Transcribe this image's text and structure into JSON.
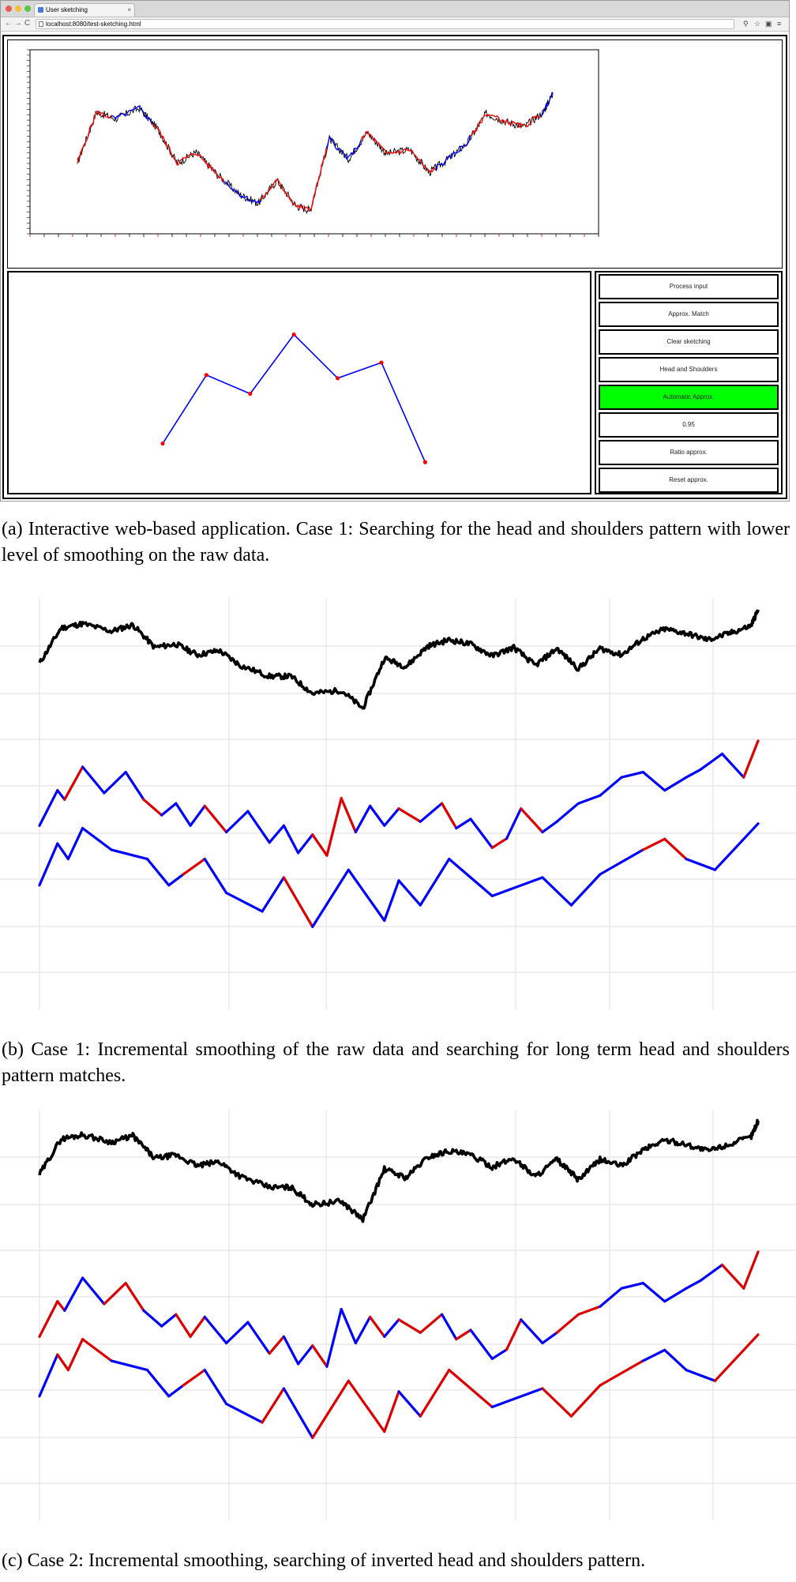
{
  "browser": {
    "tab_title": "User sketching",
    "tab_close": "×",
    "url": "localhost:8080/test-sketching.html",
    "nav": {
      "back": "←",
      "forward": "→",
      "reload": "C"
    },
    "toolbar_icons": {
      "zoom": "⚲",
      "star": "☆",
      "ext": "▣",
      "menu": "≡"
    }
  },
  "app": {
    "buttons": [
      {
        "label": "Process input",
        "active": false
      },
      {
        "label": "Approx. Match",
        "active": false
      },
      {
        "label": "Clear sketching",
        "active": false
      },
      {
        "label": "Head and Shoulders",
        "active": false
      },
      {
        "label": "Automatic Approx.",
        "active": true
      },
      {
        "label": "0.95",
        "active": false
      },
      {
        "label": "Ratio approx.",
        "active": false
      },
      {
        "label": "Reset approx.",
        "active": false
      }
    ],
    "active_color": "#00ff00",
    "sketch": {
      "line_color": "#0000ff",
      "point_color": "#ff0000",
      "points": [
        [
          0,
          0.18
        ],
        [
          1,
          0.62
        ],
        [
          2,
          0.5
        ],
        [
          3,
          0.88
        ],
        [
          4,
          0.6
        ],
        [
          5,
          0.7
        ],
        [
          6,
          0.06
        ]
      ]
    },
    "series_colors": {
      "price": "#000000",
      "segment_red": "#ff0000",
      "segment_blue": "#0000ff"
    }
  },
  "captions": {
    "a": "(a) Interactive web-based application. Case 1: Searching for the head and shoulders pattern with lower level of smoothing on the raw data.",
    "b": "(b) Case 1: Incremental smoothing of the raw data and searching for long term head and shoulders pattern matches.",
    "c": "(c) Case 2: Incremental smoothing, searching of inverted head and shoulders pattern."
  },
  "chart_data": [
    {
      "type": "line",
      "panel": "a",
      "series_colors": [
        "#000000",
        "#ff0000",
        "#0000ff"
      ],
      "x": [
        0,
        0.04,
        0.08,
        0.13,
        0.17,
        0.21,
        0.25,
        0.29,
        0.34,
        0.38,
        0.42,
        0.46,
        0.49,
        0.53,
        0.57,
        0.61,
        0.65,
        0.7,
        0.74,
        0.78,
        0.82,
        0.86,
        0.9,
        0.94,
        0.98,
        1.0
      ],
      "y": [
        0.45,
        0.83,
        0.78,
        0.86,
        0.7,
        0.45,
        0.53,
        0.38,
        0.22,
        0.15,
        0.32,
        0.13,
        0.1,
        0.63,
        0.48,
        0.68,
        0.52,
        0.55,
        0.38,
        0.48,
        0.6,
        0.82,
        0.76,
        0.72,
        0.83,
        0.97
      ]
    },
    {
      "type": "line",
      "panel": "b",
      "gridlines": true,
      "series": [
        {
          "color": "#000000",
          "x": [
            0,
            0.03,
            0.06,
            0.1,
            0.13,
            0.16,
            0.19,
            0.22,
            0.25,
            0.28,
            0.32,
            0.35,
            0.38,
            0.42,
            0.45,
            0.48,
            0.51,
            0.54,
            0.57,
            0.6,
            0.63,
            0.66,
            0.69,
            0.72,
            0.75,
            0.78,
            0.81,
            0.84,
            0.87,
            0.9,
            0.93,
            0.96,
            0.99,
            1.0
          ],
          "y": [
            0.5,
            0.83,
            0.87,
            0.8,
            0.86,
            0.65,
            0.68,
            0.58,
            0.62,
            0.48,
            0.38,
            0.38,
            0.22,
            0.25,
            0.08,
            0.55,
            0.47,
            0.66,
            0.72,
            0.68,
            0.57,
            0.65,
            0.48,
            0.64,
            0.45,
            0.64,
            0.58,
            0.73,
            0.82,
            0.78,
            0.72,
            0.78,
            0.85,
            1.0
          ]
        },
        {
          "segments": [
            {
              "color": "#0000ff",
              "x": [
                0,
                0.025,
                0.035
              ],
              "y": [
                0.05,
                0.55,
                0.4
              ]
            },
            {
              "color": "#ff0000",
              "x": [
                0.035,
                0.06,
                0.09,
                0.12,
                0.15
              ],
              "y": [
                0.4,
                0.72,
                0.45,
                0.65,
                0.35
              ]
            },
            {
              "color": "#0000ff",
              "x": [
                0.15,
                0.17,
                0.19
              ],
              "y": [
                0.35,
                0.55,
                0.2
              ]
            },
            {
              "color": "#ff0000",
              "x": [
                0.19,
                0.22,
                0.25
              ],
              "y": [
                0.2,
                0.4,
                0.18
              ]
            },
            {
              "color": "#0000ff",
              "x": [
                0.25,
                0.27
              ],
              "y": [
                0.18,
                0.0
              ]
            },
            {
              "color": "#ff0000",
              "x": [
                0.27,
                0.3,
                0.33,
                0.36
              ],
              "y": [
                0.0,
                0.45,
                0.3,
                0.02
              ]
            },
            {
              "color": "#0000ff",
              "x": [
                0.36,
                0.38
              ],
              "y": [
                0.02,
                -0.55
              ]
            }
          ]
        }
      ]
    },
    {
      "type": "line",
      "panel": "c",
      "gridlines": true,
      "series": [
        {
          "color": "#000000",
          "x": [
            0,
            0.03,
            0.06,
            0.1,
            0.13,
            0.16,
            0.19,
            0.22,
            0.25,
            0.28,
            0.32,
            0.35,
            0.38,
            0.42,
            0.45,
            0.48,
            0.51,
            0.54,
            0.57,
            0.6,
            0.63,
            0.66,
            0.69,
            0.72,
            0.75,
            0.78,
            0.81,
            0.84,
            0.87,
            0.9,
            0.93,
            0.96,
            0.99,
            1.0
          ],
          "y": [
            0.5,
            0.83,
            0.87,
            0.8,
            0.86,
            0.65,
            0.68,
            0.58,
            0.62,
            0.48,
            0.38,
            0.38,
            0.22,
            0.25,
            0.08,
            0.55,
            0.47,
            0.66,
            0.72,
            0.68,
            0.57,
            0.65,
            0.48,
            0.64,
            0.45,
            0.64,
            0.58,
            0.73,
            0.82,
            0.78,
            0.72,
            0.78,
            0.85,
            1.0
          ]
        }
      ]
    }
  ]
}
